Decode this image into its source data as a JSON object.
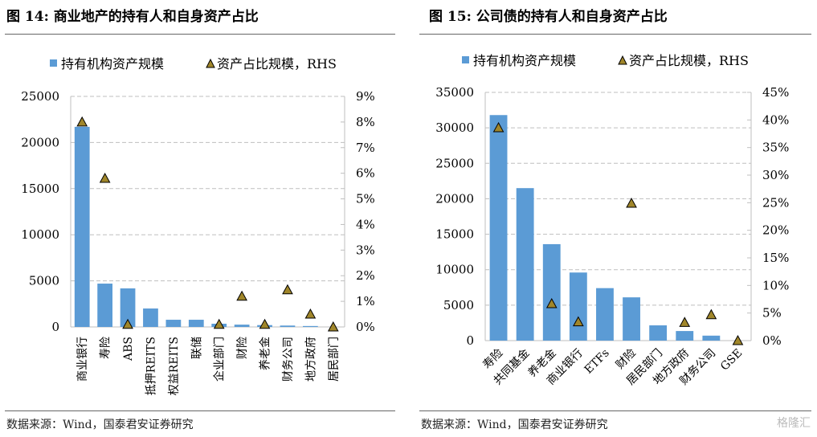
{
  "watermark": "格隆汇",
  "colors": {
    "bar": "#5B9BD5",
    "marker": "#A0862A",
    "marker_edge": "#000000",
    "grid": "#BFBFBF"
  },
  "chart_data": [
    {
      "type": "bar",
      "title": "图 14: 商业地产的持有人和自身资产占比",
      "source": "数据来源：Wind，国泰君安证券研究",
      "categories": [
        "商业银行",
        "寿险",
        "ABS",
        "抵押REITS",
        "权益REITS",
        "联储",
        "企业部门",
        "财险",
        "养老金",
        "财务公司",
        "地方政府",
        "居民部门"
      ],
      "series": [
        {
          "name": "持有机构资产规模",
          "type": "bar",
          "axis": "left",
          "values": [
            21700,
            4700,
            4180,
            2000,
            780,
            780,
            350,
            250,
            200,
            150,
            100,
            0
          ]
        },
        {
          "name": "资产占比规模，RHS",
          "type": "scatter",
          "marker": "triangle",
          "axis": "right",
          "values": [
            8.0,
            5.8,
            0.1,
            null,
            null,
            null,
            0.1,
            1.2,
            0.1,
            1.45,
            0.5,
            0
          ]
        }
      ],
      "ylim": [
        0,
        25000
      ],
      "yticks": [
        "0",
        "5000",
        "10000",
        "15000",
        "20000",
        "25000"
      ],
      "y2lim": [
        0,
        9
      ],
      "y2ticks": [
        "0%",
        "1%",
        "2%",
        "3%",
        "4%",
        "5%",
        "6%",
        "7%",
        "8%",
        "9%"
      ],
      "label_rotation": "vertical",
      "grid": true,
      "legend": "top-left"
    },
    {
      "type": "bar",
      "title": "图 15: 公司债的持有人和自身资产占比",
      "source": "数据来源：Wind，国泰君安证券研究",
      "categories": [
        "寿险",
        "共同基金",
        "养老金",
        "商业银行",
        "ETFs",
        "财险",
        "居民部门",
        "地方政府",
        "财务公司",
        "GSE"
      ],
      "series": [
        {
          "name": "持有机构资产规模",
          "type": "bar",
          "axis": "left",
          "values": [
            31800,
            21500,
            13600,
            9600,
            7400,
            6100,
            2150,
            1350,
            700,
            0
          ]
        },
        {
          "name": "资产占比规模，RHS",
          "type": "scatter",
          "marker": "triangle",
          "axis": "right",
          "values": [
            38.6,
            null,
            6.7,
            3.4,
            null,
            24.9,
            null,
            3.3,
            4.7,
            0
          ]
        }
      ],
      "ylim": [
        0,
        35000
      ],
      "yticks": [
        "0",
        "5000",
        "10000",
        "15000",
        "20000",
        "25000",
        "30000",
        "35000"
      ],
      "y2lim": [
        0,
        45
      ],
      "y2ticks": [
        "0%",
        "5%",
        "10%",
        "15%",
        "20%",
        "25%",
        "30%",
        "35%",
        "40%",
        "45%"
      ],
      "label_rotation": "45",
      "grid": true,
      "legend": "top-left"
    }
  ]
}
